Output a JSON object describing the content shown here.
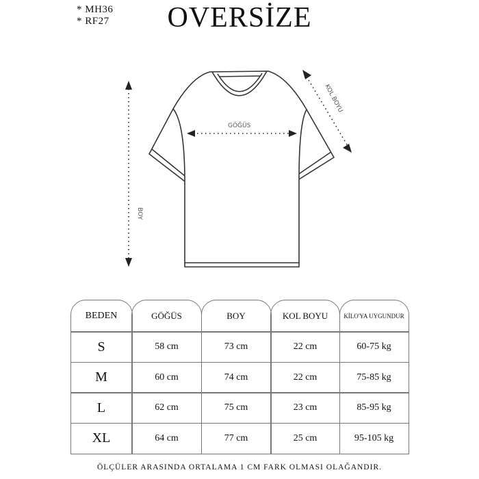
{
  "codes": [
    "* MH36",
    "* RF27"
  ],
  "title": "OVERSİZE",
  "diagram": {
    "chest_label": "GÖĞÜS",
    "length_label": "BOY",
    "sleeve_label": "KOL BOYU"
  },
  "table": {
    "headers": [
      "BEDEN",
      "GÖĞÜS",
      "BOY",
      "KOL BOYU",
      "KİLO'YA UYGUNDUR"
    ],
    "rows": [
      [
        "S",
        "58 cm",
        "73 cm",
        "22  cm",
        "60-75 kg"
      ],
      [
        "M",
        "60 cm",
        "74 cm",
        "22 cm",
        "75-85 kg"
      ],
      [
        "L",
        "62 cm",
        "75 cm",
        "23 cm",
        "85-95 kg"
      ],
      [
        "XL",
        "64 cm",
        "77 cm",
        "25 cm",
        "95-105 kg"
      ]
    ]
  },
  "footer": "ÖLÇÜLER ARASINDA ORTALAMA 1 CM FARK OLMASI OLAĞANDIR."
}
